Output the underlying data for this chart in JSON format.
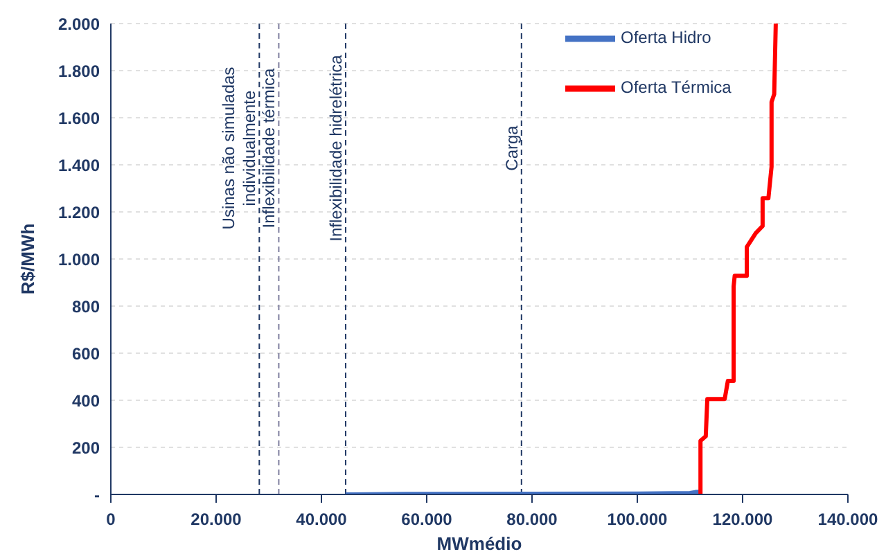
{
  "chart_data": {
    "type": "line",
    "xlabel": "MWmédio",
    "ylabel": "R$/MWh",
    "xlim": [
      0,
      140000
    ],
    "xticks": [
      0,
      {
        "value": 20000,
        "label": "20.000"
      },
      {
        "value": 40000,
        "label": "40.000"
      },
      {
        "value": 60000,
        "label": "60.000"
      },
      {
        "value": 80000,
        "label": "80.000"
      },
      {
        "value": 100000,
        "label": "100.000"
      },
      {
        "value": 120000,
        "label": "120.000"
      },
      {
        "value": 140000,
        "label": "140.000"
      }
    ],
    "ylim": [
      0,
      2000
    ],
    "yticks": [
      {
        "value": 0,
        "label": "-"
      },
      200,
      400,
      600,
      800,
      {
        "value": 1000,
        "label": "1.000"
      },
      {
        "value": 1200,
        "label": "1.200"
      },
      {
        "value": 1400,
        "label": "1.400"
      },
      {
        "value": 1600,
        "label": "1.600"
      },
      {
        "value": 1800,
        "label": "1.800"
      },
      {
        "value": 2000,
        "label": "2.000"
      }
    ],
    "grid": "y",
    "legend": "top right",
    "marker": "none",
    "line_style": "solid",
    "series": [
      {
        "name": "Oferta Hidro",
        "color": "#4472c4",
        "x": [
          44600,
          56000,
          80000,
          100000,
          110000,
          111000,
          112000
        ],
        "values": [
          0,
          2,
          3,
          4,
          6,
          10,
          12
        ]
      },
      {
        "name": "Oferta Térmica",
        "color": "#ff0000",
        "x": [
          112000,
          112000,
          113000,
          113300,
          116600,
          117200,
          118300,
          118300,
          118500,
          120800,
          120800,
          122500,
          123800,
          123800,
          124900,
          125500,
          125500,
          126000,
          126300
        ],
        "values": [
          0,
          228,
          247,
          405,
          405,
          482,
          482,
          884,
          929,
          929,
          1051,
          1110,
          1140,
          1258,
          1258,
          1392,
          1667,
          1700,
          2000
        ]
      }
    ],
    "ref_lines": [
      {
        "axis": "x",
        "value": 28200,
        "label": "Usinas não simuladas\nindividualmente",
        "color": "#203864",
        "line_style": "dashed"
      },
      {
        "axis": "x",
        "value": 31900,
        "label": "Inflexibilidade térmica",
        "color": "#7f7f9f",
        "line_style": "dashed"
      },
      {
        "axis": "x",
        "value": 44600,
        "label": "Inflexibilidade hidrelétrica",
        "color": "#203864",
        "line_style": "dashed"
      },
      {
        "axis": "x",
        "value": 78000,
        "label": "Carga",
        "color": "#203864",
        "line_style": "dashed"
      }
    ]
  }
}
